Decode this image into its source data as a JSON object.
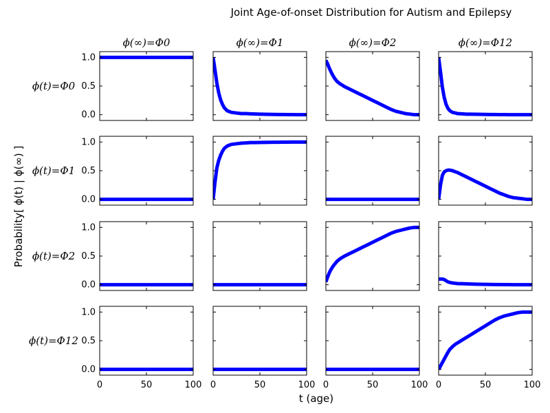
{
  "chart_data": {
    "type": "line",
    "title": "Joint Age-of-onset Distribution for Autism and Epilepsy",
    "xlabel": "t (age)",
    "ylabel": "Probability[ ϕ(t) | ϕ(∞) ]",
    "xlim": [
      0,
      100
    ],
    "ylim": [
      -0.1,
      1.1
    ],
    "xticks": [
      "0",
      "50",
      "100"
    ],
    "yticks": [
      "0.0",
      "0.5",
      "1.0"
    ],
    "grid": false,
    "legend": "none",
    "line_color": "#0000ff",
    "column_titles": [
      "ϕ(∞)=Φ0",
      "ϕ(∞)=Φ1",
      "ϕ(∞)=Φ2",
      "ϕ(∞)=Φ12"
    ],
    "row_labels": [
      "ϕ(t)=Φ0",
      "ϕ(t)=Φ1",
      "ϕ(t)=Φ2",
      "ϕ(t)=Φ12"
    ],
    "x": [
      0,
      2,
      4,
      6,
      8,
      10,
      12,
      15,
      18,
      20,
      25,
      30,
      35,
      40,
      45,
      50,
      55,
      60,
      65,
      70,
      75,
      80,
      85,
      90,
      95,
      100
    ],
    "panels": [
      [
        {
          "y": [
            1,
            1,
            1,
            1,
            1,
            1,
            1,
            1,
            1,
            1,
            1,
            1,
            1,
            1,
            1,
            1,
            1,
            1,
            1,
            1,
            1,
            1,
            1,
            1,
            1,
            1
          ]
        },
        {
          "y": [
            1.0,
            0.78,
            0.55,
            0.38,
            0.26,
            0.18,
            0.12,
            0.07,
            0.05,
            0.04,
            0.03,
            0.02,
            0.02,
            0.015,
            0.012,
            0.01,
            0.008,
            0.006,
            0.005,
            0.004,
            0.003,
            0.002,
            0.002,
            0.001,
            0.0,
            0.0
          ]
        },
        {
          "y": [
            0.95,
            0.88,
            0.8,
            0.73,
            0.67,
            0.62,
            0.58,
            0.54,
            0.51,
            0.49,
            0.45,
            0.41,
            0.37,
            0.33,
            0.29,
            0.25,
            0.21,
            0.17,
            0.13,
            0.09,
            0.06,
            0.04,
            0.02,
            0.01,
            0.0,
            0.0
          ]
        },
        {
          "y": [
            1.0,
            0.75,
            0.48,
            0.3,
            0.18,
            0.11,
            0.07,
            0.04,
            0.03,
            0.02,
            0.015,
            0.01,
            0.01,
            0.008,
            0.006,
            0.005,
            0.004,
            0.003,
            0.002,
            0.002,
            0.001,
            0.001,
            0.0,
            0.0,
            0.0,
            0.0
          ]
        }
      ],
      [
        {
          "y": [
            0,
            0,
            0,
            0,
            0,
            0,
            0,
            0,
            0,
            0,
            0,
            0,
            0,
            0,
            0,
            0,
            0,
            0,
            0,
            0,
            0,
            0,
            0,
            0,
            0,
            0
          ]
        },
        {
          "y": [
            0.0,
            0.3,
            0.55,
            0.68,
            0.77,
            0.84,
            0.89,
            0.93,
            0.95,
            0.96,
            0.97,
            0.98,
            0.985,
            0.99,
            0.99,
            0.992,
            0.994,
            0.995,
            0.996,
            0.997,
            0.998,
            0.998,
            0.999,
            0.999,
            1.0,
            1.0
          ]
        },
        {
          "y": [
            0,
            0,
            0,
            0,
            0,
            0,
            0,
            0,
            0,
            0,
            0,
            0,
            0,
            0,
            0,
            0,
            0,
            0,
            0,
            0,
            0,
            0,
            0,
            0,
            0,
            0
          ]
        },
        {
          "y": [
            0.0,
            0.25,
            0.42,
            0.48,
            0.5,
            0.51,
            0.51,
            0.5,
            0.48,
            0.47,
            0.43,
            0.39,
            0.35,
            0.31,
            0.27,
            0.23,
            0.19,
            0.15,
            0.11,
            0.08,
            0.05,
            0.03,
            0.02,
            0.01,
            0.0,
            0.0
          ]
        }
      ],
      [
        {
          "y": [
            0,
            0,
            0,
            0,
            0,
            0,
            0,
            0,
            0,
            0,
            0,
            0,
            0,
            0,
            0,
            0,
            0,
            0,
            0,
            0,
            0,
            0,
            0,
            0,
            0,
            0
          ]
        },
        {
          "y": [
            0,
            0,
            0,
            0,
            0,
            0,
            0,
            0,
            0,
            0,
            0,
            0,
            0,
            0,
            0,
            0,
            0,
            0,
            0,
            0,
            0,
            0,
            0,
            0,
            0,
            0
          ]
        },
        {
          "y": [
            0.05,
            0.14,
            0.22,
            0.28,
            0.33,
            0.37,
            0.41,
            0.45,
            0.48,
            0.5,
            0.54,
            0.58,
            0.62,
            0.66,
            0.7,
            0.74,
            0.78,
            0.82,
            0.86,
            0.9,
            0.93,
            0.95,
            0.97,
            0.99,
            1.0,
            1.0
          ]
        },
        {
          "y": [
            0.1,
            0.1,
            0.1,
            0.09,
            0.07,
            0.05,
            0.04,
            0.03,
            0.025,
            0.02,
            0.018,
            0.015,
            0.012,
            0.01,
            0.008,
            0.006,
            0.005,
            0.004,
            0.003,
            0.002,
            0.002,
            0.001,
            0.001,
            0.0,
            0.0,
            0.0
          ]
        }
      ],
      [
        {
          "y": [
            0,
            0,
            0,
            0,
            0,
            0,
            0,
            0,
            0,
            0,
            0,
            0,
            0,
            0,
            0,
            0,
            0,
            0,
            0,
            0,
            0,
            0,
            0,
            0,
            0,
            0
          ]
        },
        {
          "y": [
            0,
            0,
            0,
            0,
            0,
            0,
            0,
            0,
            0,
            0,
            0,
            0,
            0,
            0,
            0,
            0,
            0,
            0,
            0,
            0,
            0,
            0,
            0,
            0,
            0,
            0
          ]
        },
        {
          "y": [
            0,
            0,
            0,
            0,
            0,
            0,
            0,
            0,
            0,
            0,
            0,
            0,
            0,
            0,
            0,
            0,
            0,
            0,
            0,
            0,
            0,
            0,
            0,
            0,
            0,
            0
          ]
        },
        {
          "y": [
            0.0,
            0.06,
            0.12,
            0.18,
            0.24,
            0.3,
            0.35,
            0.4,
            0.44,
            0.46,
            0.51,
            0.56,
            0.61,
            0.66,
            0.71,
            0.76,
            0.81,
            0.86,
            0.9,
            0.93,
            0.95,
            0.97,
            0.99,
            1.0,
            1.0,
            1.0
          ]
        }
      ]
    ]
  }
}
